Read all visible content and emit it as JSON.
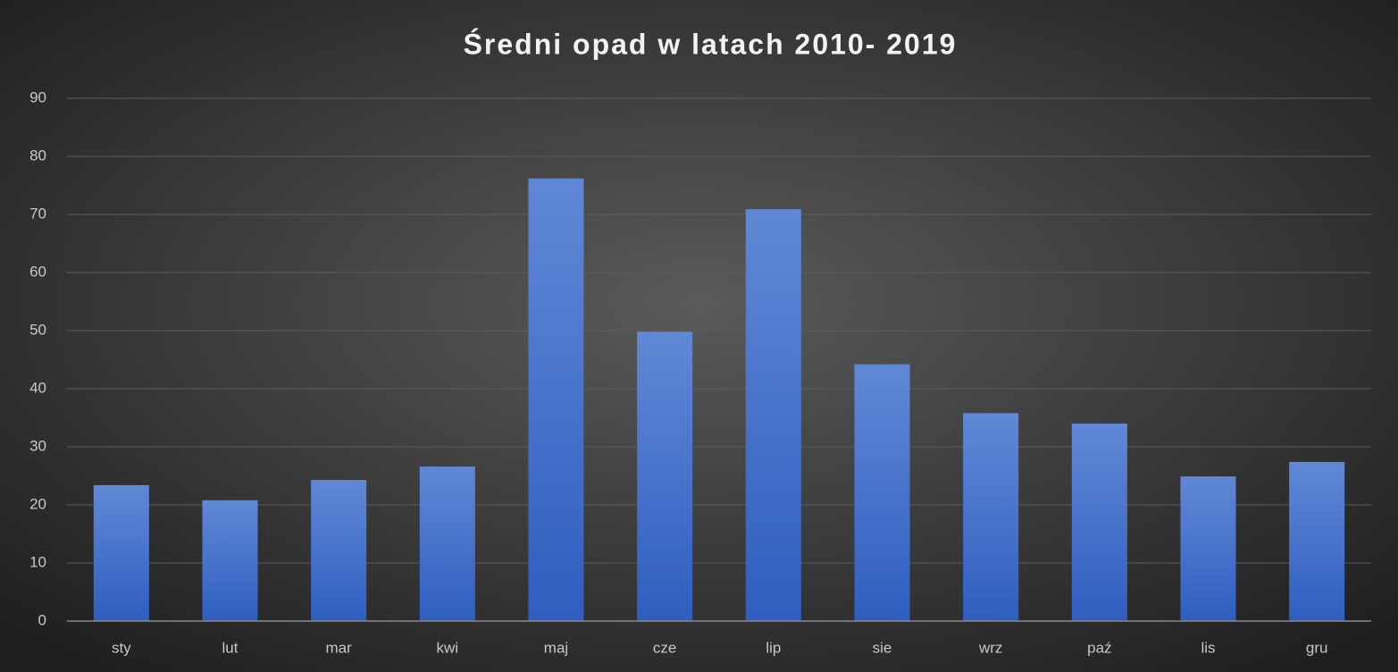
{
  "chart_data": {
    "type": "bar",
    "title": "Średni opad w latach 2010- 2019",
    "categories": [
      "sty",
      "lut",
      "mar",
      "kwi",
      "maj",
      "cze",
      "lip",
      "sie",
      "wrz",
      "paź",
      "lis",
      "gru"
    ],
    "values": [
      23.4,
      20.8,
      24.3,
      26.6,
      76.2,
      49.8,
      70.9,
      44.2,
      35.8,
      34.0,
      24.9,
      27.4
    ],
    "color": "#4472c4",
    "ylim": [
      0,
      90
    ],
    "yticks": [
      0,
      10,
      20,
      30,
      40,
      50,
      60,
      70,
      80,
      90
    ],
    "grid": true
  }
}
